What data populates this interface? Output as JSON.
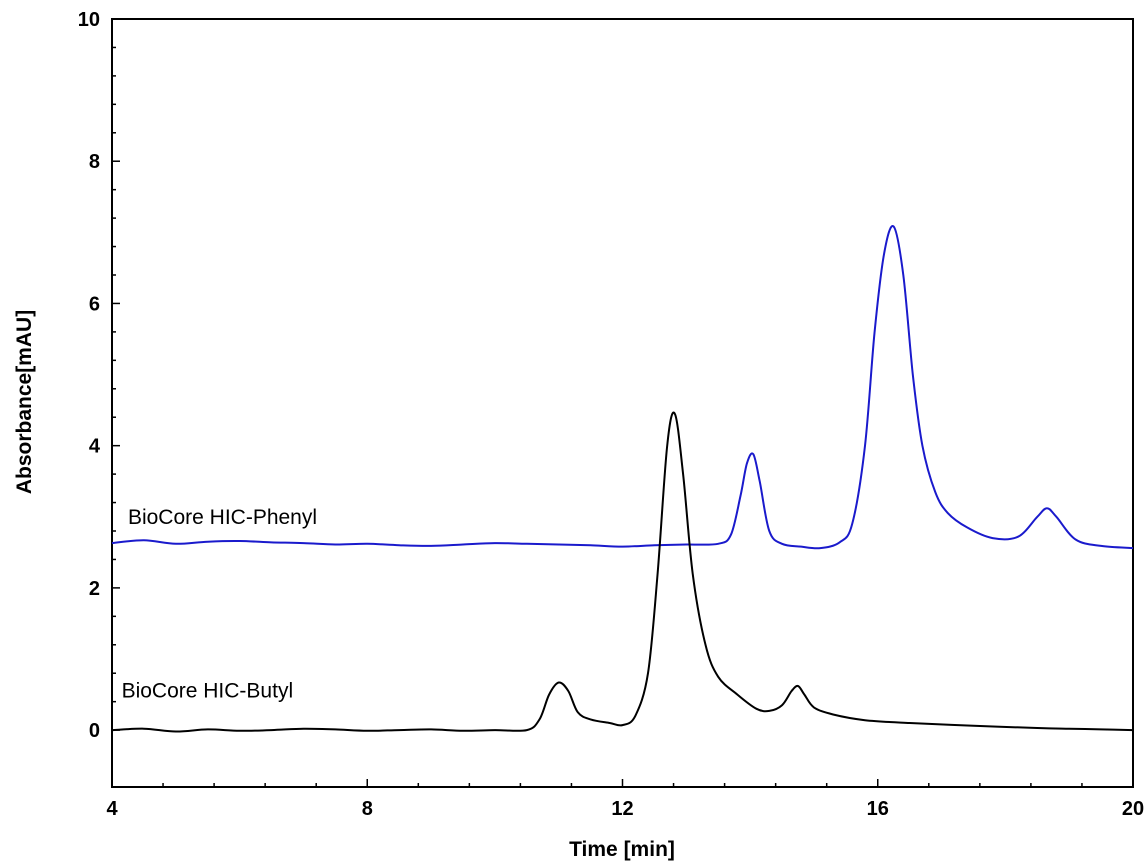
{
  "chart_data": {
    "type": "line",
    "title": "",
    "xlabel": "Time [min]",
    "ylabel": "Absorbance[mAU]",
    "xlim": [
      4,
      20
    ],
    "ylim": [
      -0.8,
      10
    ],
    "x_ticks": [
      4,
      8,
      12,
      16,
      20
    ],
    "y_ticks": [
      0,
      2,
      4,
      6,
      8,
      10
    ],
    "grid": false,
    "legend": "none",
    "series": [
      {
        "name": "BioCore HIC-Phenyl",
        "color": "#1a1acc",
        "x": [
          4.0,
          4.5,
          5.0,
          5.5,
          6.0,
          6.5,
          7.0,
          7.5,
          8.0,
          8.5,
          9.0,
          9.5,
          10.0,
          10.5,
          11.0,
          11.5,
          12.0,
          12.5,
          13.0,
          13.5,
          13.7,
          13.85,
          13.95,
          14.05,
          14.15,
          14.3,
          14.5,
          14.8,
          15.1,
          15.4,
          15.6,
          15.8,
          15.95,
          16.1,
          16.25,
          16.4,
          16.55,
          16.7,
          16.9,
          17.1,
          17.4,
          17.8,
          18.2,
          18.5,
          18.65,
          18.8,
          19.1,
          19.5,
          20.0
        ],
        "y": [
          2.63,
          2.67,
          2.62,
          2.65,
          2.66,
          2.64,
          2.63,
          2.61,
          2.62,
          2.6,
          2.59,
          2.61,
          2.63,
          2.62,
          2.61,
          2.6,
          2.58,
          2.6,
          2.61,
          2.62,
          2.75,
          3.3,
          3.75,
          3.88,
          3.5,
          2.8,
          2.62,
          2.58,
          2.56,
          2.64,
          2.9,
          4.0,
          5.6,
          6.7,
          7.08,
          6.4,
          5.0,
          4.0,
          3.35,
          3.05,
          2.85,
          2.7,
          2.72,
          3.0,
          3.12,
          3.0,
          2.68,
          2.59,
          2.56
        ]
      },
      {
        "name": "BioCore HIC-Butyl",
        "color": "#000000",
        "x": [
          4.0,
          4.5,
          5.0,
          5.5,
          6.0,
          6.5,
          7.0,
          7.5,
          8.0,
          8.5,
          9.0,
          9.5,
          10.0,
          10.5,
          10.7,
          10.85,
          11.0,
          11.15,
          11.3,
          11.5,
          11.8,
          12.0,
          12.2,
          12.4,
          12.55,
          12.7,
          12.82,
          12.95,
          13.1,
          13.3,
          13.5,
          13.8,
          14.1,
          14.3,
          14.5,
          14.65,
          14.75,
          14.85,
          15.0,
          15.3,
          15.8,
          16.5,
          17.5,
          18.5,
          19.0,
          19.5,
          20.0
        ],
        "y": [
          0.0,
          0.02,
          -0.02,
          0.01,
          -0.01,
          0.0,
          0.02,
          0.01,
          -0.01,
          0.0,
          0.01,
          -0.01,
          0.0,
          0.0,
          0.15,
          0.5,
          0.67,
          0.55,
          0.25,
          0.15,
          0.1,
          0.07,
          0.2,
          0.8,
          2.2,
          4.0,
          4.45,
          3.6,
          2.2,
          1.2,
          0.75,
          0.5,
          0.3,
          0.27,
          0.35,
          0.55,
          0.62,
          0.5,
          0.32,
          0.22,
          0.14,
          0.1,
          0.06,
          0.03,
          0.02,
          0.01,
          0.0
        ]
      }
    ],
    "annotations": [
      {
        "text": "BioCore HIC-Phenyl",
        "x": 4.25,
        "y": 2.9
      },
      {
        "text": "BioCore HIC-Butyl",
        "x": 4.15,
        "y": 0.46
      }
    ]
  }
}
